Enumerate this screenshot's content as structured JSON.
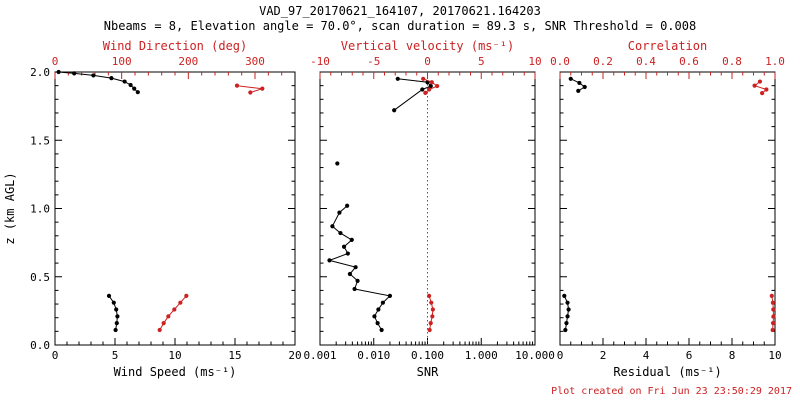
{
  "header": {
    "title": "VAD_97_20170621_164107, 20170621.164203",
    "subtitle": "Nbeams = 8, Elevation angle = 70.0°, scan duration = 89.3 s, SNR Threshold = 0.008"
  },
  "footer": {
    "created": "Plot created on Fri Jun 23 23:50:29 2017"
  },
  "colors": {
    "axis_black": "#000000",
    "accent_red": "#cc2222",
    "background": "#ffffff"
  },
  "y_axis": {
    "label": "z (km AGL)",
    "lim": [
      0,
      2
    ],
    "tick_values": [
      0,
      0.5,
      1,
      1.5,
      2
    ],
    "tick_labels": [
      "0.0",
      "0.5",
      "1.0",
      "1.5",
      "2.0"
    ]
  },
  "chart_data": [
    {
      "id": "wind",
      "type": "scatter",
      "mode": "lines+markers",
      "title_bottom": "Wind Speed (ms⁻¹)",
      "title_top": "Wind Direction (deg)",
      "bottom_axis": {
        "scale": "linear",
        "lim": [
          0,
          20
        ],
        "tick_values": [
          0,
          5,
          10,
          15,
          20
        ],
        "tick_labels": [
          "0",
          "5",
          "10",
          "15",
          "20"
        ],
        "color": "black",
        "minor": 4
      },
      "top_axis": {
        "scale": "linear",
        "lim": [
          0,
          360
        ],
        "tick_values": [
          0,
          100,
          200,
          300
        ],
        "tick_labels": [
          "0",
          "100",
          "200",
          "300"
        ],
        "color": "red",
        "minor": 4
      },
      "series": [
        {
          "name": "Wind Speed",
          "axis": "bottom",
          "color": "black",
          "segments": [
            [
              [
                0.3,
                2.0
              ],
              [
                1.6,
                1.99
              ],
              [
                3.2,
                1.975
              ],
              [
                4.7,
                1.955
              ],
              [
                5.8,
                1.93
              ],
              [
                6.3,
                1.905
              ],
              [
                6.6,
                1.878
              ],
              [
                6.9,
                1.852
              ]
            ],
            [
              [
                4.5,
                0.36
              ],
              [
                4.9,
                0.31
              ],
              [
                5.1,
                0.26
              ],
              [
                5.2,
                0.21
              ],
              [
                5.15,
                0.16
              ],
              [
                5.05,
                0.11
              ]
            ]
          ]
        },
        {
          "name": "Wind Direction",
          "axis": "top",
          "color": "red",
          "segments": [
            [
              [
                273,
                1.9
              ],
              [
                311,
                1.878
              ],
              [
                293,
                1.85
              ]
            ],
            [
              [
                197,
                0.36
              ],
              [
                188,
                0.31
              ],
              [
                179,
                0.26
              ],
              [
                170,
                0.21
              ],
              [
                163,
                0.16
              ],
              [
                157,
                0.11
              ]
            ]
          ]
        }
      ]
    },
    {
      "id": "snr",
      "type": "scatter",
      "mode": "lines+markers",
      "title_bottom": "SNR",
      "title_top": "Vertical velocity (ms⁻¹)",
      "bottom_axis": {
        "scale": "log",
        "lim": [
          0.001,
          10
        ],
        "tick_values": [
          0.001,
          0.01,
          0.1,
          1,
          10
        ],
        "tick_labels": [
          "0.001",
          "0.010",
          "0.100",
          "1.000",
          "10.000"
        ],
        "color": "black"
      },
      "top_axis": {
        "scale": "linear",
        "lim": [
          -10,
          10
        ],
        "tick_values": [
          -10,
          -5,
          0,
          5,
          10
        ],
        "tick_labels": [
          "-10",
          "-5",
          "0",
          "5",
          "10"
        ],
        "color": "red",
        "minor": 4
      },
      "refline": {
        "axis": "top",
        "value": 0,
        "color": "red",
        "style": "dotted"
      },
      "series": [
        {
          "name": "SNR",
          "axis": "bottom",
          "color": "black",
          "segments": [
            [
              [
                0.028,
                1.95
              ],
              [
                0.1,
                1.925
              ],
              [
                0.115,
                1.897
              ],
              [
                0.08,
                1.872
              ],
              [
                0.024,
                1.72
              ]
            ],
            [
              [
                0.0021,
                1.33
              ]
            ],
            [
              [
                0.0032,
                1.02
              ],
              [
                0.0023,
                0.97
              ],
              [
                0.0017,
                0.87
              ],
              [
                0.0024,
                0.82
              ],
              [
                0.0039,
                0.77
              ],
              [
                0.0028,
                0.72
              ],
              [
                0.0033,
                0.67
              ],
              [
                0.0015,
                0.62
              ],
              [
                0.0046,
                0.57
              ],
              [
                0.0036,
                0.52
              ],
              [
                0.005,
                0.47
              ],
              [
                0.0044,
                0.41
              ],
              [
                0.02,
                0.36
              ],
              [
                0.0148,
                0.31
              ],
              [
                0.0122,
                0.26
              ],
              [
                0.0103,
                0.21
              ],
              [
                0.0118,
                0.16
              ],
              [
                0.014,
                0.11
              ]
            ]
          ]
        },
        {
          "name": "Vertical velocity",
          "axis": "top",
          "color": "red",
          "segments": [
            [
              [
                -0.4,
                1.95
              ],
              [
                0.4,
                1.925
              ],
              [
                0.9,
                1.897
              ],
              [
                0.15,
                1.872
              ],
              [
                -0.2,
                1.847
              ]
            ],
            [
              [
                0.15,
                0.36
              ],
              [
                0.35,
                0.31
              ],
              [
                0.5,
                0.26
              ],
              [
                0.45,
                0.21
              ],
              [
                0.3,
                0.16
              ],
              [
                0.2,
                0.11
              ]
            ]
          ]
        }
      ]
    },
    {
      "id": "residual",
      "type": "scatter",
      "mode": "lines+markers",
      "title_bottom": "Residual (ms⁻¹)",
      "title_top": "Correlation",
      "bottom_axis": {
        "scale": "linear",
        "lim": [
          0,
          10
        ],
        "tick_values": [
          0,
          2,
          4,
          6,
          8,
          10
        ],
        "tick_labels": [
          "0",
          "2",
          "4",
          "6",
          "8",
          "10"
        ],
        "color": "black",
        "minor": 3
      },
      "top_axis": {
        "scale": "linear",
        "lim": [
          0,
          1
        ],
        "tick_values": [
          0,
          0.2,
          0.4,
          0.6,
          0.8,
          1
        ],
        "tick_labels": [
          "0.0",
          "0.2",
          "0.4",
          "0.6",
          "0.8",
          "1.0"
        ],
        "color": "red",
        "minor": 3
      },
      "series": [
        {
          "name": "Residual",
          "axis": "bottom",
          "color": "black",
          "segments": [
            [
              [
                0.5,
                1.95
              ],
              [
                0.9,
                1.92
              ],
              [
                1.15,
                1.89
              ],
              [
                0.85,
                1.862
              ]
            ],
            [
              [
                0.2,
                0.36
              ],
              [
                0.35,
                0.31
              ],
              [
                0.4,
                0.26
              ],
              [
                0.35,
                0.21
              ],
              [
                0.3,
                0.16
              ],
              [
                0.25,
                0.11
              ]
            ]
          ]
        },
        {
          "name": "Correlation",
          "axis": "top",
          "color": "red",
          "segments": [
            [
              [
                0.93,
                1.93
              ],
              [
                0.905,
                1.9
              ],
              [
                0.96,
                1.872
              ],
              [
                0.94,
                1.845
              ]
            ],
            [
              [
                0.985,
                0.36
              ],
              [
                0.99,
                0.31
              ],
              [
                0.992,
                0.26
              ],
              [
                0.993,
                0.21
              ],
              [
                0.991,
                0.16
              ],
              [
                0.989,
                0.11
              ]
            ]
          ]
        }
      ]
    }
  ]
}
